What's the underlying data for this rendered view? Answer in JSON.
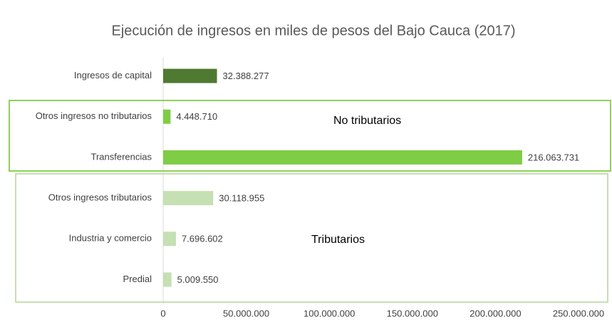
{
  "chart_data": {
    "type": "barh",
    "title": "Ejecución de ingresos en miles de pesos del Bajo Cauca (2017)",
    "categories": [
      "Ingresos de capital",
      "Otros ingresos no tributarios",
      "Transferencias",
      "Otros ingresos tributarios",
      "Industria y comercio",
      "Predial"
    ],
    "values": [
      32388277,
      4448710,
      216063731,
      30118955,
      7696602,
      5009550
    ],
    "value_labels": [
      "32.388.277",
      "4.448.710",
      "216.063.731",
      "30.118.955",
      "7.696.602",
      "5.009.550"
    ],
    "colors": [
      "#4f7a31",
      "#7fcc45",
      "#7fcc45",
      "#c5e0b3",
      "#c5e0b3",
      "#c5e0b3"
    ],
    "xlim": [
      0,
      250000000
    ],
    "xticks": [
      0,
      {
        "value": 50000000,
        "label": "50.000.000"
      },
      {
        "value": 100000000,
        "label": "100.000.000"
      },
      {
        "value": 150000000,
        "label": "150.000.000"
      },
      {
        "value": 200000000,
        "label": "200.000.000"
      },
      {
        "value": 250000000,
        "label": "250.000.000"
      }
    ],
    "annotations": [
      "No tributarios",
      "Tributarios"
    ]
  }
}
